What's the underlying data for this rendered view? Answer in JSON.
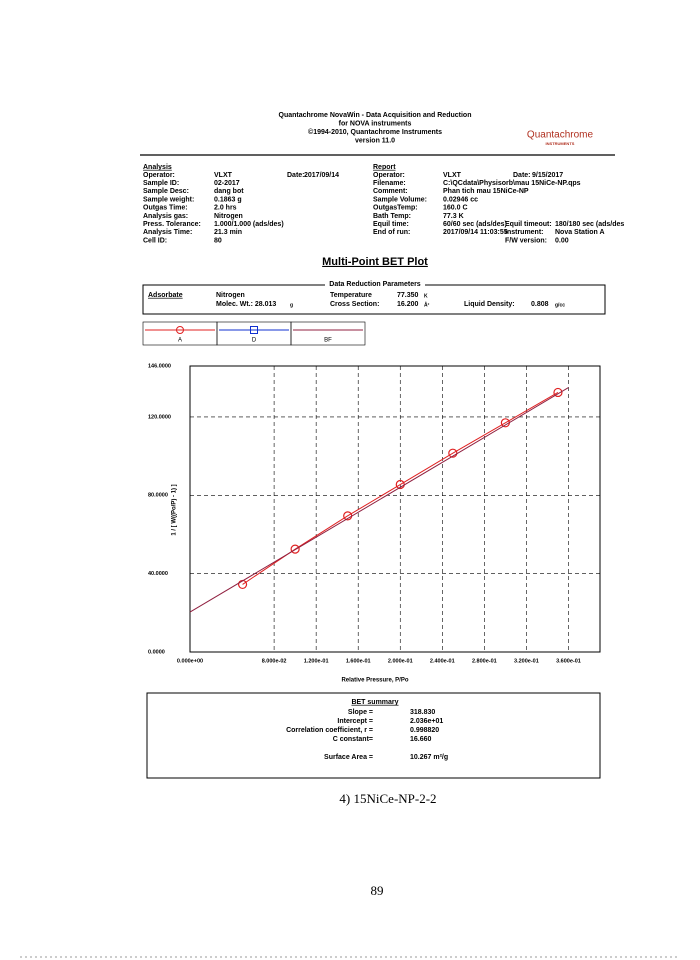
{
  "header": {
    "lines": [
      "Quantachrome NovaWin - Data Acquisition and Reduction",
      "for NOVA instruments",
      "©1994-2010, Quantachrome Instruments",
      "version 11.0"
    ],
    "logo": "Quantachrome",
    "logo_sub": "INSTRUMENTS"
  },
  "analysis": {
    "heading": "Analysis",
    "date_label": "Date:",
    "date": "2017/09/14",
    "fields": [
      [
        "Operator:",
        "VLXT"
      ],
      [
        "Sample ID:",
        "02-2017"
      ],
      [
        "Sample Desc:",
        "dang bot"
      ],
      [
        "Sample weight:",
        "0.1863 g"
      ],
      [
        "Outgas Time:",
        "2.0 hrs"
      ],
      [
        "Analysis gas:",
        "Nitrogen"
      ],
      [
        "Press. Tolerance:",
        "1.000/1.000 (ads/des)"
      ],
      [
        "Analysis Time:",
        "21.3 min"
      ],
      [
        "Cell ID:",
        "80"
      ]
    ]
  },
  "report": {
    "heading": "Report",
    "date_label": "Date:",
    "date": "9/15/2017",
    "fields": [
      [
        "Operator:",
        "VLXT"
      ],
      [
        "Filename:",
        "C:\\QCdata\\Physisorb\\mau 15NiCe-NP.qps"
      ],
      [
        "Comment:",
        "Phan tich mau 15NiCe-NP"
      ],
      [
        "Sample Volume:",
        "0.02946 cc"
      ],
      [
        "OutgasTemp:",
        "160.0 C"
      ],
      [
        "Bath Temp:",
        "77.3 K"
      ],
      [
        "Equil time:",
        "60/60 sec (ads/des)"
      ],
      [
        "End of run:",
        "2017/09/14 11:03:55"
      ]
    ],
    "extra": [
      [
        "Equil timeout:",
        "180/180 sec (ads/des"
      ],
      [
        "Instrument:",
        "Nova Station A"
      ],
      [
        "F/W version:",
        "0.00"
      ]
    ]
  },
  "plot_title": "Multi-Point BET Plot",
  "params": {
    "title": "Data Reduction Parameters",
    "adsorbate_label": "Adsorbate",
    "adsorbate": "Nitrogen",
    "molec": "Molec. Wt.: 28.013",
    "molec_unit": "g",
    "temp_label": "Temperature",
    "temp": "77.350",
    "temp_unit": "K",
    "cs_label": "Cross Section:",
    "cs": "16.200",
    "cs_unit": "Å²",
    "ld_label": "Liquid Density:",
    "ld": "0.808",
    "ld_unit": "g/cc"
  },
  "chart_data": {
    "type": "scatter",
    "x_label": "Relative Pressure, P/Po",
    "y_label": "1 / [ W((Po/P) - 1) ]",
    "xlim": [
      0,
      0.39
    ],
    "ylim": [
      0,
      146
    ],
    "xticks": [
      {
        "value": 0,
        "label": "0.000e+00"
      },
      {
        "value": 0.08,
        "label": "8.000e-02"
      },
      {
        "value": 0.12,
        "label": "1.200e-01"
      },
      {
        "value": 0.16,
        "label": "1.600e-01"
      },
      {
        "value": 0.2,
        "label": "2.000e-01"
      },
      {
        "value": 0.24,
        "label": "2.400e-01"
      },
      {
        "value": 0.28,
        "label": "2.800e-01"
      },
      {
        "value": 0.32,
        "label": "3.200e-01"
      },
      {
        "value": 0.36,
        "label": "3.600e-01"
      }
    ],
    "yticks": [
      {
        "value": 0,
        "label": "0.0000"
      },
      {
        "value": 40,
        "label": "40.0000"
      },
      {
        "value": 80,
        "label": "80.0000"
      },
      {
        "value": 120,
        "label": "120.0000"
      },
      {
        "value": 146,
        "label": "146.0000"
      }
    ],
    "grid": true,
    "series": [
      {
        "name": "A",
        "color": "#e02020",
        "marker": "circle",
        "x": [
          0.05,
          0.1,
          0.15,
          0.2,
          0.25,
          0.3,
          0.35
        ],
        "values": [
          34.5,
          52.5,
          69.5,
          85.5,
          101.5,
          117,
          132.5
        ]
      },
      {
        "name": "D",
        "color": "#1030d0",
        "marker": "square",
        "x": [],
        "values": []
      },
      {
        "name": "BF",
        "color": "#902040",
        "marker": "line",
        "x": [
          0,
          0.36
        ],
        "values": [
          20.4,
          135
        ]
      }
    ]
  },
  "summary": {
    "title": "BET summary",
    "rows": [
      [
        "Slope =",
        "318.830"
      ],
      [
        "Intercept =",
        "2.036e+01"
      ],
      [
        "Correlation coefficient, r =",
        "0.998820"
      ],
      [
        "C constant=",
        "16.660"
      ],
      [
        "Surface Area =",
        "10.267 m²/g"
      ]
    ]
  },
  "caption": "4)  15NiCe-NP-2-2",
  "page_number": "89"
}
